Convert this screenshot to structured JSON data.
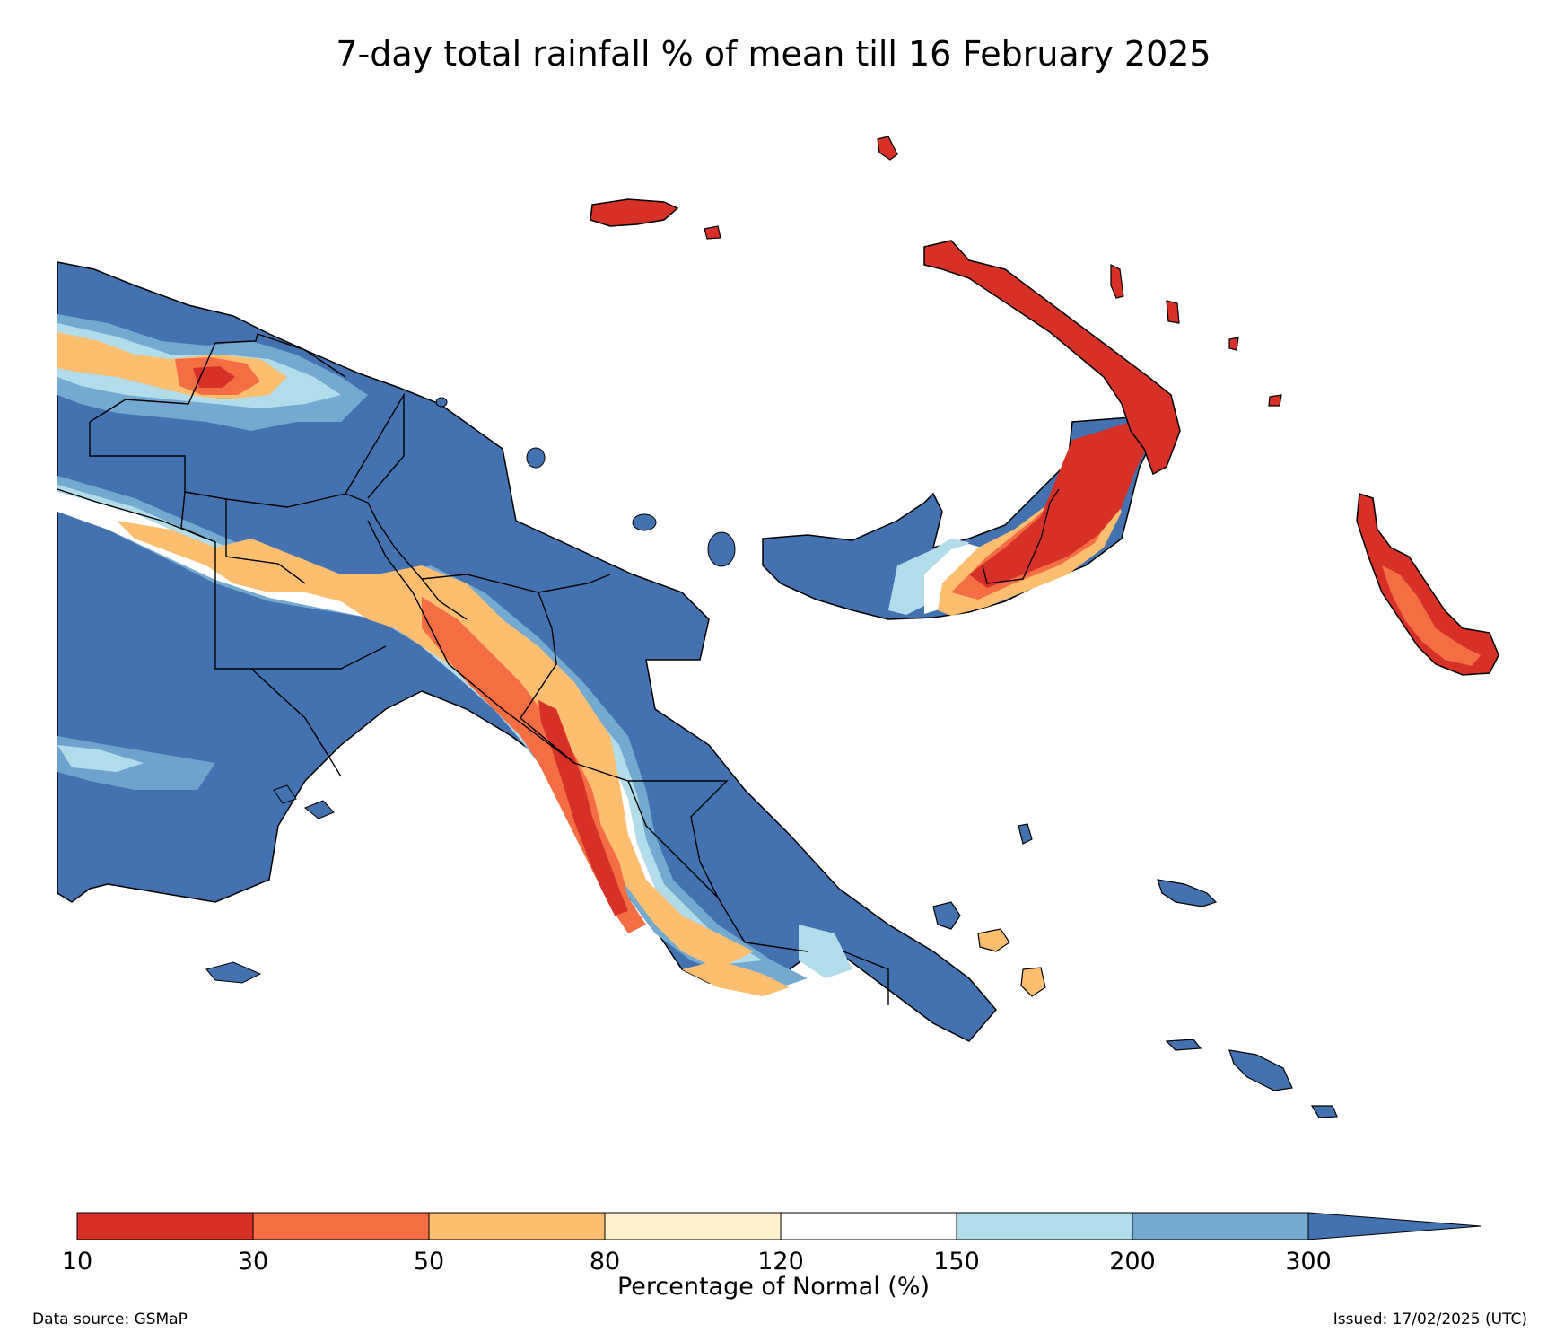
{
  "title": "7-day total rainfall % of mean till 16 February 2025",
  "colorbar": {
    "title": "Percentage of Normal (%)",
    "ticks": [
      "10",
      "30",
      "50",
      "80",
      "120",
      "150",
      "200",
      "300"
    ],
    "bins": [
      {
        "from": "10",
        "to": "30",
        "color": "#d73027"
      },
      {
        "from": "30",
        "to": "50",
        "color": "#f46d43"
      },
      {
        "from": "50",
        "to": "80",
        "color": "#fdbe6f"
      },
      {
        "from": "80",
        "to": "120",
        "color": "#fff2cc"
      },
      {
        "from": "120",
        "to": "150",
        "color": "#ffffff"
      },
      {
        "from": "150",
        "to": "200",
        "color": "#b3dcea"
      },
      {
        "from": "200",
        "to": "300",
        "color": "#74a9d0"
      },
      {
        "from": "300",
        "to": "",
        "color": "#4472b0",
        "extend": "max"
      }
    ]
  },
  "footer": {
    "source": "Data source: GSMaP",
    "issued": "Issued: 17/02/2025 (UTC)"
  },
  "map": {
    "region": "Papua New Guinea",
    "colors": {
      "dry_extreme": "#d73027",
      "dry": "#f46d43",
      "below": "#fdbe6f",
      "near": "#fff2cc",
      "normal": "#ffffff",
      "wet": "#b3dcea",
      "wetter": "#74a9d0",
      "wettest": "#4472b0",
      "border": "#000000"
    }
  }
}
